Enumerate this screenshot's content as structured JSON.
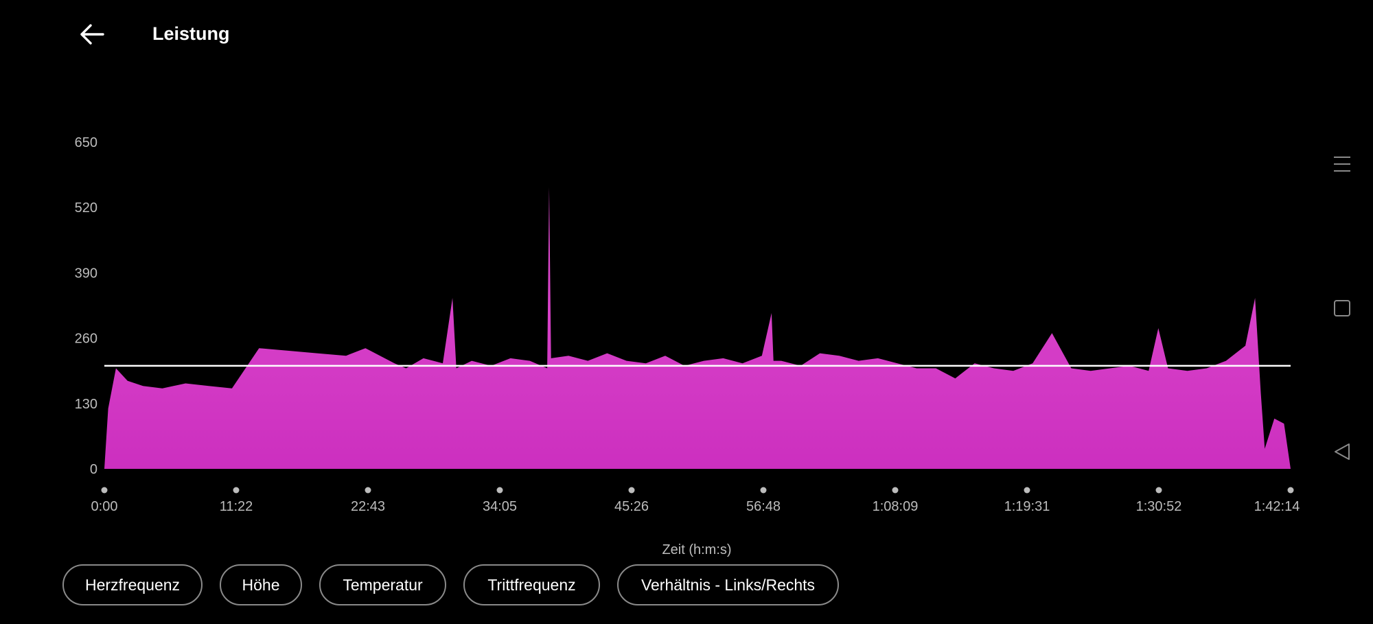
{
  "header": {
    "title": "Leistung",
    "back_icon": "arrow-left-icon"
  },
  "chart_data": {
    "type": "area",
    "title": "Leistung",
    "xlabel": "Zeit (h:m:s)",
    "ylabel": "",
    "ylim": [
      0,
      650
    ],
    "y_ticks": [
      "0",
      "130",
      "260",
      "390",
      "520",
      "650"
    ],
    "x_ticks": [
      "0:00",
      "11:22",
      "22:43",
      "34:05",
      "45:26",
      "56:48",
      "1:08:09",
      "1:19:31",
      "1:30:52",
      "1:42:14"
    ],
    "xlim_seconds": [
      0,
      6134
    ],
    "average_line": 205,
    "fill_color_top": "#e04fd0",
    "fill_color_bottom": "#cc2fbf",
    "avg_line_color": "#ffffff",
    "series": [
      {
        "x_seconds": [
          0,
          20,
          60,
          120,
          200,
          300,
          420,
          540,
          660,
          800,
          950,
          1100,
          1250,
          1350,
          1500,
          1560,
          1650,
          1750,
          1800,
          1820,
          1900,
          2000,
          2100,
          2200,
          2290,
          2300,
          2310,
          2400,
          2500,
          2600,
          2700,
          2800,
          2900,
          3000,
          3100,
          3200,
          3300,
          3400,
          3450,
          3460,
          3500,
          3600,
          3700,
          3800,
          3900,
          4000,
          4100,
          4200,
          4300,
          4400,
          4500,
          4600,
          4700,
          4800,
          4900,
          5000,
          5100,
          5200,
          5300,
          5400,
          5450,
          5500,
          5600,
          5700,
          5800,
          5900,
          5950,
          5980,
          6000,
          6050,
          6100,
          6134
        ],
        "values": [
          0,
          120,
          200,
          175,
          165,
          160,
          170,
          165,
          160,
          240,
          235,
          230,
          225,
          240,
          210,
          200,
          220,
          210,
          340,
          200,
          215,
          205,
          220,
          215,
          200,
          560,
          220,
          225,
          215,
          230,
          215,
          210,
          225,
          205,
          215,
          220,
          210,
          225,
          310,
          215,
          215,
          205,
          230,
          225,
          215,
          220,
          210,
          200,
          200,
          180,
          210,
          200,
          195,
          210,
          270,
          200,
          195,
          200,
          205,
          195,
          280,
          200,
          195,
          200,
          215,
          245,
          340,
          150,
          40,
          100,
          90,
          0
        ]
      }
    ]
  },
  "metrics": {
    "buttons": [
      {
        "label": "Herzfrequenz"
      },
      {
        "label": "Höhe"
      },
      {
        "label": "Temperatur"
      },
      {
        "label": "Trittfrequenz"
      },
      {
        "label": "Verhältnis - Links/Rechts"
      }
    ]
  },
  "system_nav": {
    "icons": [
      "menu-icon",
      "square-icon",
      "triangle-back-icon"
    ]
  }
}
